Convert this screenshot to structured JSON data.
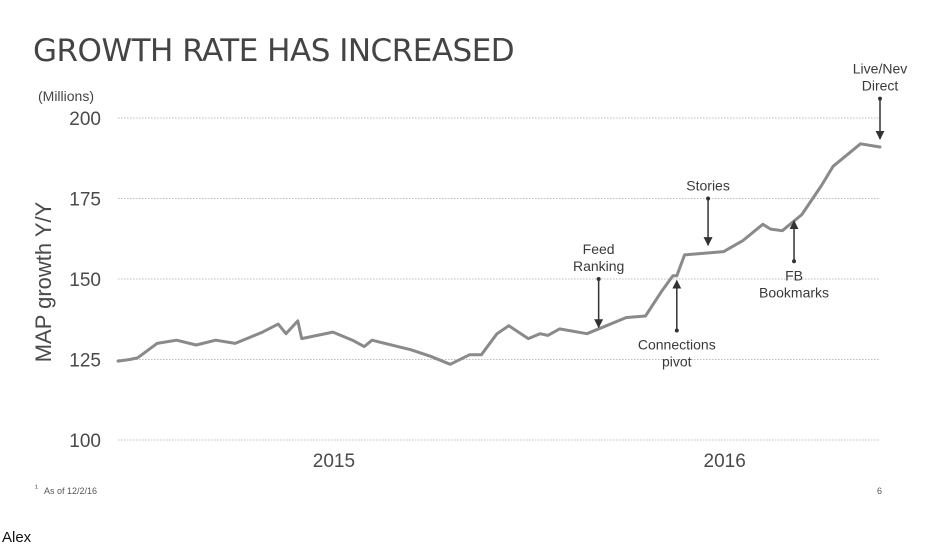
{
  "chart_data": {
    "type": "line",
    "title": "GROWTH RATE HAS INCREASED",
    "unit_label": "(Millions)",
    "ylabel": "MAP growth Y/Y",
    "xlabel": "",
    "ylim": [
      100,
      200
    ],
    "yticks": [
      200,
      175,
      150,
      125,
      100
    ],
    "x_tick_labels": [
      {
        "label": "2015",
        "x": 2015.3
      },
      {
        "label": "2016",
        "x": 2016.3
      }
    ],
    "grid": true,
    "series": [
      {
        "x": [
          2014.75,
          2014.78,
          2014.8,
          2014.85,
          2014.9,
          2014.95,
          2015.0,
          2015.05,
          2015.12,
          2015.16,
          2015.18,
          2015.21,
          2015.22,
          2015.3,
          2015.35,
          2015.38,
          2015.4,
          2015.5,
          2015.55,
          2015.6,
          2015.65,
          2015.68,
          2015.72,
          2015.75,
          2015.8,
          2015.83,
          2015.85,
          2015.88,
          2015.95,
          2016.0,
          2016.05,
          2016.1,
          2016.14,
          2016.17,
          2016.18,
          2016.2,
          2016.25,
          2016.3,
          2016.35,
          2016.38,
          2016.4,
          2016.42,
          2016.45,
          2016.5,
          2016.55,
          2016.58,
          2016.65,
          2016.7
        ],
        "y": [
          124.5,
          125,
          125.5,
          130,
          131,
          129.5,
          131,
          130,
          133.5,
          136,
          133,
          137,
          131.5,
          133.5,
          131,
          129,
          131,
          128,
          126,
          123.5,
          126.5,
          126.5,
          133,
          135.5,
          131.5,
          133,
          132.5,
          134.5,
          133,
          135.5,
          138,
          138.5,
          146,
          151,
          151,
          157.5,
          158,
          158.5,
          162,
          165,
          167,
          165.5,
          165,
          170,
          179,
          185,
          192,
          191
        ]
      }
    ],
    "annotations": [
      {
        "lines": [
          "Feed",
          "Ranking"
        ],
        "x": 2015.98,
        "y_from": 150,
        "y_to": 135,
        "direction": "down"
      },
      {
        "lines": [
          "Connections",
          "pivot"
        ],
        "x": 2016.18,
        "y_from": 134,
        "y_to": 149.5,
        "direction": "up"
      },
      {
        "lines": [
          "Stories"
        ],
        "x": 2016.26,
        "y_from": 175,
        "y_to": 160.5,
        "direction": "down"
      },
      {
        "lines": [
          "FB",
          "Bookmarks"
        ],
        "x": 2016.48,
        "y_from": 155.5,
        "y_to": 168,
        "direction": "up"
      },
      {
        "lines": [
          "Live/Nev",
          "Direct"
        ],
        "x": 2016.7,
        "y_from": 206,
        "y_to": 193.5,
        "direction": "down"
      }
    ],
    "footnote": "As of 12/2/16",
    "footnote_marker": "¹",
    "page_number": "6"
  },
  "author": "Alex"
}
